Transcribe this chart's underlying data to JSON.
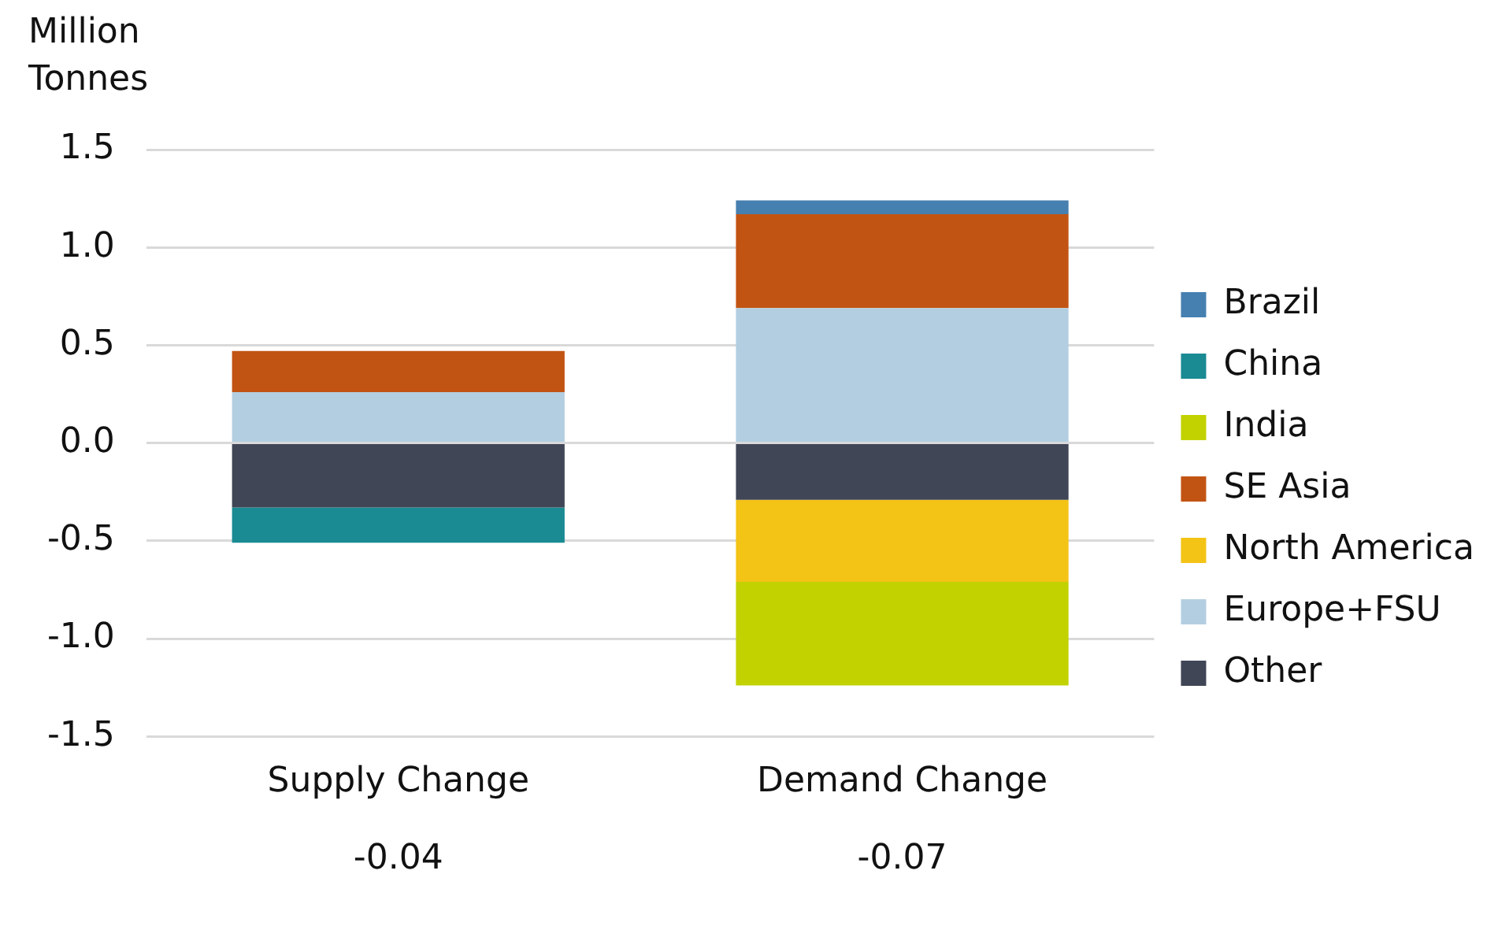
{
  "chart_data": {
    "type": "bar",
    "stacked": true,
    "ylabel": "Million Tonnes",
    "categories": [
      "Supply Change",
      "Demand Change"
    ],
    "ylim": [
      -1.5,
      1.5
    ],
    "yticks": [
      {
        "value": -1.5,
        "label": "-1.5"
      },
      {
        "value": -1,
        "label": "-1.0"
      },
      {
        "value": -0.5,
        "label": "-0.5"
      },
      {
        "value": 0,
        "label": "0.0"
      },
      {
        "value": 0.5,
        "label": "0.5"
      },
      {
        "value": 1,
        "label": "1.0"
      },
      {
        "value": 1.5,
        "label": "1.5"
      }
    ],
    "grid": "y",
    "legend": "right",
    "annotations": [
      "-0.04",
      "-0.07"
    ],
    "series": [
      {
        "name": "Other",
        "color": "#404656",
        "values": [
          -0.33,
          -0.29
        ]
      },
      {
        "name": "Europe+FSU",
        "color": "#b3cee1",
        "values": [
          0.26,
          0.69
        ]
      },
      {
        "name": "North America",
        "color": "#f3c316",
        "values": [
          null,
          -0.42
        ]
      },
      {
        "name": "SE Asia",
        "color": "#c25413",
        "values": [
          0.21,
          0.48
        ]
      },
      {
        "name": "India",
        "color": "#c2d200",
        "values": [
          null,
          -0.53
        ]
      },
      {
        "name": "China",
        "color": "#1a8a93",
        "values": [
          -0.18,
          null
        ]
      },
      {
        "name": "Brazil",
        "color": "#4680b0",
        "values": [
          null,
          0.07
        ]
      }
    ]
  }
}
